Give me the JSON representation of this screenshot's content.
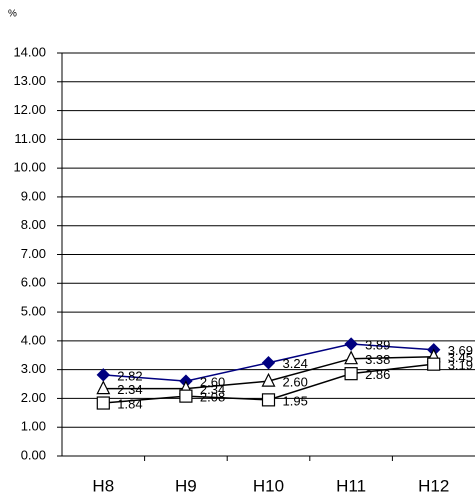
{
  "chart_data": {
    "type": "line",
    "unit_label": "%",
    "categories": [
      "H8",
      "H9",
      "H10",
      "H11",
      "H12"
    ],
    "series": [
      {
        "color": "#000080",
        "marker": "diamond",
        "marker_fill": "#000080",
        "values": [
          2.82,
          2.6,
          3.24,
          3.89,
          3.69
        ],
        "value_labels": [
          "2.82",
          "2.60",
          "3.24",
          "3.89",
          "3.69"
        ]
      },
      {
        "color": "#000000",
        "marker": "triangle",
        "marker_fill": "#ffffff",
        "values": [
          2.34,
          2.34,
          2.6,
          3.38,
          3.45
        ],
        "value_labels": [
          "2.34",
          "2.34",
          "2.60",
          "3.38",
          "3.45"
        ]
      },
      {
        "color": "#000000",
        "marker": "square",
        "marker_fill": "#ffffff",
        "values": [
          1.84,
          2.08,
          1.95,
          2.86,
          3.19
        ],
        "value_labels": [
          "1.84",
          "2.08",
          "1.95",
          "2.86",
          "3.19"
        ]
      }
    ],
    "ylim": [
      0,
      14
    ],
    "yticks": [
      {
        "value": 0,
        "label": "0.00"
      },
      {
        "value": 1,
        "label": "1.00"
      },
      {
        "value": 2,
        "label": "2.00"
      },
      {
        "value": 3,
        "label": "3.00"
      },
      {
        "value": 4,
        "label": "4.00"
      },
      {
        "value": 5,
        "label": "5.00"
      },
      {
        "value": 6,
        "label": "6.00"
      },
      {
        "value": 7,
        "label": "7.00"
      },
      {
        "value": 8,
        "label": "8.00"
      },
      {
        "value": 9,
        "label": "9.00"
      },
      {
        "value": 10,
        "label": "10.00"
      },
      {
        "value": 11,
        "label": "11.00"
      },
      {
        "value": 12,
        "label": "12.00"
      },
      {
        "value": 13,
        "label": "13.00"
      },
      {
        "value": 14,
        "label": "14.00"
      }
    ],
    "grid": true
  }
}
